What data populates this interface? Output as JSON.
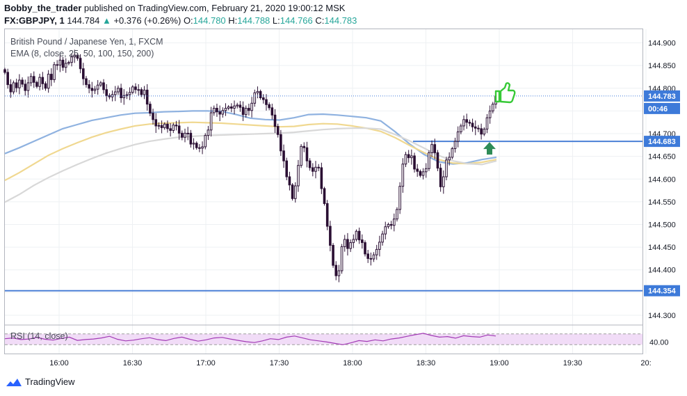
{
  "header": {
    "author": "Bobby_the_trader",
    "published": "published on TradingView.com, February 21, 2020 19:00:12 MSK"
  },
  "ohlc": {
    "symbol": "FX:GBPJPY, 1",
    "last": "144.784",
    "change": "+0.376 (+0.26%)",
    "open_label": "O:",
    "open": "144.780",
    "high_label": "H:",
    "high": "144.788",
    "low_label": "L:",
    "low": "144.766",
    "close_label": "C:",
    "close": "144.783"
  },
  "legend": {
    "title": "British Pound / Japanese Yen, 1, FXCM",
    "ema": "EMA (8, close, 25, 50, 100, 150, 200)",
    "rsi": "RSI (14, close)"
  },
  "brand": {
    "name": "TradingView"
  },
  "colors": {
    "bull": "#ffffff",
    "bear": "#2a0f33",
    "wick": "#2a0f33",
    "ema_blue": "#8fb2e0",
    "ema_yellow": "#f0d890",
    "ema_gray": "#d8d8d8",
    "hline": "#4a7fd6",
    "rsi": "#a23ab5",
    "rsi_band": "#f1dcf7",
    "price_label": "#3d7ad9",
    "thumb": "#37c937",
    "arrow": "#2e8b57"
  },
  "chart_data": {
    "type": "candlestick",
    "title": "British Pound / Japanese Yen, 1, FXCM",
    "interval": "1 minute",
    "ylim": [
      144.28,
      144.93
    ],
    "y_ticks": [
      "144.900",
      "144.850",
      "144.800",
      "144.750",
      "144.700",
      "144.650",
      "144.600",
      "144.550",
      "144.500",
      "144.450",
      "144.400",
      "144.350",
      "144.300"
    ],
    "x_ticks": [
      "16:00",
      "16:30",
      "17:00",
      "17:30",
      "18:00",
      "18:30",
      "19:00",
      "19:30",
      "20:"
    ],
    "price_labels": {
      "current": "144.783",
      "countdown": "00:46",
      "resistance": "144.683",
      "support": "144.354"
    },
    "horizontal_lines": [
      {
        "value": 144.683,
        "label": "144.683"
      },
      {
        "value": 144.354,
        "label": "144.354"
      }
    ],
    "candles_close": [
      144.835,
      144.808,
      144.792,
      144.812,
      144.801,
      144.818,
      144.809,
      144.795,
      144.812,
      144.826,
      144.813,
      144.804,
      144.824,
      144.81,
      144.8,
      144.831,
      144.819,
      144.852,
      144.851,
      144.862,
      144.846,
      144.855,
      144.857,
      144.869,
      144.873,
      144.866,
      144.843,
      144.821,
      144.808,
      144.8,
      144.795,
      144.798,
      144.807,
      144.812,
      144.797,
      144.784,
      144.781,
      144.786,
      144.792,
      144.8,
      144.779,
      144.784,
      144.786,
      144.791,
      144.803,
      144.797,
      144.797,
      144.786,
      144.796,
      144.765,
      144.745,
      144.731,
      144.717,
      144.718,
      144.713,
      144.721,
      144.711,
      144.707,
      144.719,
      144.717,
      144.701,
      144.692,
      144.701,
      144.701,
      144.677,
      144.679,
      144.669,
      144.668,
      144.671,
      144.696,
      144.708,
      144.746,
      144.756,
      144.748,
      144.743,
      144.751,
      144.756,
      144.759,
      144.756,
      144.761,
      144.763,
      144.758,
      144.742,
      144.756,
      144.751,
      144.767,
      144.79,
      144.793,
      144.779,
      144.775,
      144.764,
      144.757,
      144.741,
      144.716,
      144.698,
      144.662,
      144.64,
      144.605,
      144.587,
      144.557,
      144.585,
      144.63,
      144.672,
      144.669,
      144.64,
      144.625,
      144.617,
      144.626,
      144.625,
      144.579,
      144.546,
      144.496,
      144.454,
      144.41,
      144.387,
      144.398,
      144.451,
      144.467,
      144.447,
      144.46,
      144.467,
      144.485,
      144.466,
      144.46,
      144.435,
      144.425,
      144.424,
      144.433,
      144.445,
      144.461,
      144.479,
      144.495,
      144.5,
      144.498,
      144.512,
      144.533,
      144.584,
      144.633,
      144.654,
      144.647,
      144.651,
      144.622,
      144.617,
      144.608,
      144.616,
      144.623,
      144.658,
      144.676,
      144.658,
      144.624,
      144.583,
      144.605,
      144.642,
      144.648,
      144.667,
      144.683,
      144.704,
      144.717,
      144.731,
      144.725,
      144.723,
      144.715,
      144.712,
      144.711,
      144.699,
      144.71,
      144.735,
      144.75,
      144.765,
      144.783
    ],
    "ema_series": [
      {
        "name": "EMA 100",
        "color": "blue",
        "values": [
          144.656,
          144.669,
          144.683,
          144.697,
          144.711,
          144.72,
          144.729,
          144.735,
          144.741,
          144.745,
          144.746,
          144.748,
          144.749,
          144.75,
          144.75,
          144.749,
          144.742,
          144.734,
          144.731,
          144.73,
          144.735,
          144.742,
          144.743,
          144.741,
          144.738,
          144.735,
          144.728,
          144.704,
          144.677,
          144.654,
          144.638,
          144.633,
          144.636,
          144.643,
          144.648
        ]
      },
      {
        "name": "EMA 150",
        "color": "yellow",
        "values": [
          144.597,
          144.614,
          144.633,
          144.652,
          144.667,
          144.68,
          144.692,
          144.702,
          144.71,
          144.717,
          144.721,
          144.723,
          144.724,
          144.725,
          144.724,
          144.723,
          144.721,
          144.719,
          144.717,
          144.715,
          144.716,
          144.72,
          144.722,
          144.721,
          144.717,
          144.712,
          144.705,
          144.691,
          144.674,
          144.658,
          144.643,
          144.635,
          144.634,
          144.637,
          144.643
        ]
      },
      {
        "name": "EMA 200",
        "color": "gray",
        "values": [
          144.549,
          144.566,
          144.586,
          144.603,
          144.618,
          144.632,
          144.645,
          144.657,
          144.667,
          144.676,
          144.683,
          144.688,
          144.692,
          144.694,
          144.696,
          144.697,
          144.698,
          144.699,
          144.7,
          144.701,
          144.703,
          144.706,
          144.709,
          144.711,
          144.712,
          144.712,
          144.71,
          144.698,
          144.684,
          144.668,
          144.652,
          144.64,
          144.634,
          144.632,
          144.64
        ]
      }
    ],
    "rsi": {
      "name": "RSI (14, close)",
      "levels": [
        70,
        30
      ],
      "tick": "40.00",
      "values": [
        52,
        55,
        49,
        51,
        57,
        50,
        47,
        53,
        58,
        46,
        49,
        51,
        55,
        61,
        50,
        44,
        47,
        52,
        56,
        49,
        45,
        53,
        58,
        50,
        43,
        48,
        55,
        57,
        51,
        46,
        41,
        38,
        44,
        52,
        49,
        58,
        62,
        55,
        48,
        44,
        40,
        35,
        30,
        37,
        45,
        42,
        48,
        44,
        51,
        55,
        61,
        67,
        72,
        64,
        58,
        60,
        54,
        63,
        60,
        58,
        66,
        62
      ]
    }
  }
}
